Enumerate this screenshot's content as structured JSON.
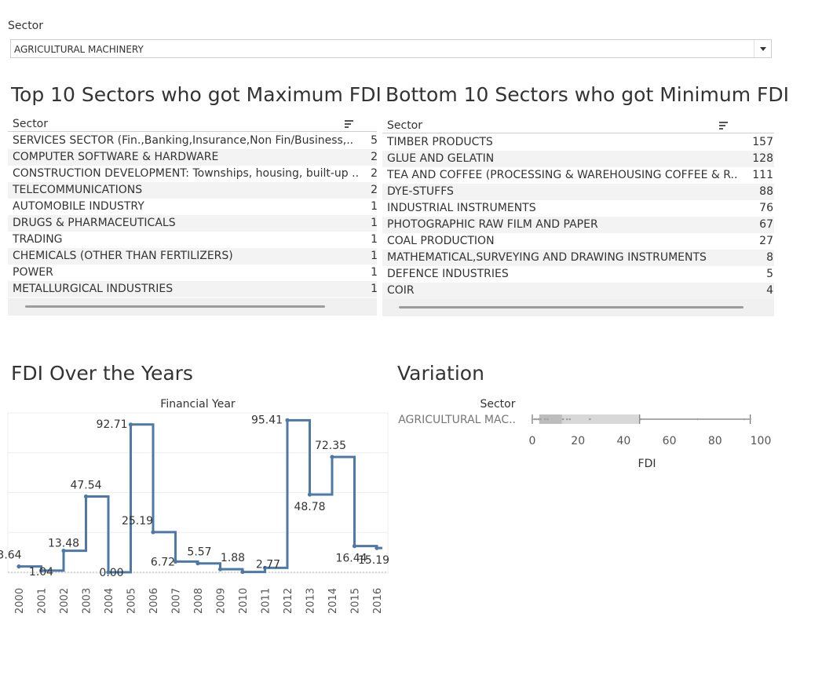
{
  "filter": {
    "label": "Sector",
    "selected": "AGRICULTURAL MACHINERY"
  },
  "top_table": {
    "title": "Top 10 Sectors who got Maximum FDI",
    "column": "Sector",
    "rows": [
      {
        "name": "SERVICES SECTOR (Fin.,Banking,Insurance,Non Fin/Business,..",
        "value": "5"
      },
      {
        "name": "COMPUTER SOFTWARE & HARDWARE",
        "value": "2"
      },
      {
        "name": "CONSTRUCTION DEVELOPMENT: Townships, housing, built-up ..",
        "value": "2"
      },
      {
        "name": "TELECOMMUNICATIONS",
        "value": "2"
      },
      {
        "name": "AUTOMOBILE INDUSTRY",
        "value": "1"
      },
      {
        "name": "DRUGS & PHARMACEUTICALS",
        "value": "1"
      },
      {
        "name": "TRADING",
        "value": "1"
      },
      {
        "name": "CHEMICALS (OTHER THAN FERTILIZERS)",
        "value": "1"
      },
      {
        "name": "POWER",
        "value": "1"
      },
      {
        "name": "METALLURGICAL INDUSTRIES",
        "value": "1"
      }
    ]
  },
  "bottom_table": {
    "title": "Bottom 10 Sectors who got Minimum FDI",
    "column": "Sector",
    "rows": [
      {
        "name": "TIMBER PRODUCTS",
        "value": "157"
      },
      {
        "name": "GLUE AND GELATIN",
        "value": "128"
      },
      {
        "name": "TEA AND COFFEE (PROCESSING & WAREHOUSING COFFEE & R..",
        "value": "111"
      },
      {
        "name": "DYE-STUFFS",
        "value": "88"
      },
      {
        "name": "INDUSTRIAL INSTRUMENTS",
        "value": "76"
      },
      {
        "name": "PHOTOGRAPHIC RAW FILM AND PAPER",
        "value": "67"
      },
      {
        "name": "COAL PRODUCTION",
        "value": "27"
      },
      {
        "name": "MATHEMATICAL,SURVEYING AND DRAWING INSTRUMENTS",
        "value": "8"
      },
      {
        "name": "DEFENCE INDUSTRIES",
        "value": "5"
      },
      {
        "name": "COIR",
        "value": "4"
      }
    ]
  },
  "line_chart": {
    "title": "FDI Over the Years",
    "header": "Financial Year",
    "color": "#4e79a7"
  },
  "box_chart": {
    "title": "Variation",
    "header": "Sector",
    "row_label": "AGRICULTURAL MAC..",
    "xlabel": "FDI"
  },
  "chart_data": [
    {
      "type": "line",
      "title": "FDI Over the Years",
      "xlabel": "Financial Year",
      "step": true,
      "x": [
        "2000",
        "2001",
        "2002",
        "2003",
        "2004",
        "2005",
        "2006",
        "2007",
        "2008",
        "2009",
        "2010",
        "2011",
        "2012",
        "2013",
        "2014",
        "2015",
        "2016"
      ],
      "series": [
        {
          "values": [
            3.64,
            1.04,
            13.48,
            47.54,
            0.0,
            92.71,
            25.19,
            6.72,
            5.57,
            1.88,
            0.2,
            2.77,
            95.41,
            48.78,
            72.35,
            16.44,
            15.19
          ]
        }
      ],
      "labels": [
        "3.64",
        "1.04",
        "13.48",
        "47.54",
        "0.00",
        "92.71",
        "25.19",
        "6.72",
        "5.57",
        "1.88",
        "",
        "2.77",
        "95.41",
        "48.78",
        "72.35",
        "16.44",
        "15.19"
      ],
      "ylim": [
        0,
        100
      ],
      "grid": true
    },
    {
      "type": "box",
      "title": "Variation",
      "categories": [
        "AGRICULTURAL MAC.."
      ],
      "xlabel": "FDI",
      "xlim": [
        0,
        100
      ],
      "xticks": [
        0,
        20,
        40,
        60,
        80,
        100
      ],
      "whisker_low": 0,
      "q1": 3,
      "median": 13,
      "q3": 47,
      "whisker_high": 95.41,
      "points": [
        0.0,
        1.04,
        1.88,
        2.77,
        3.64,
        5.57,
        6.72,
        13.48,
        15.19,
        16.44,
        25.19,
        47.54,
        72.35,
        92.71,
        95.41
      ]
    }
  ]
}
